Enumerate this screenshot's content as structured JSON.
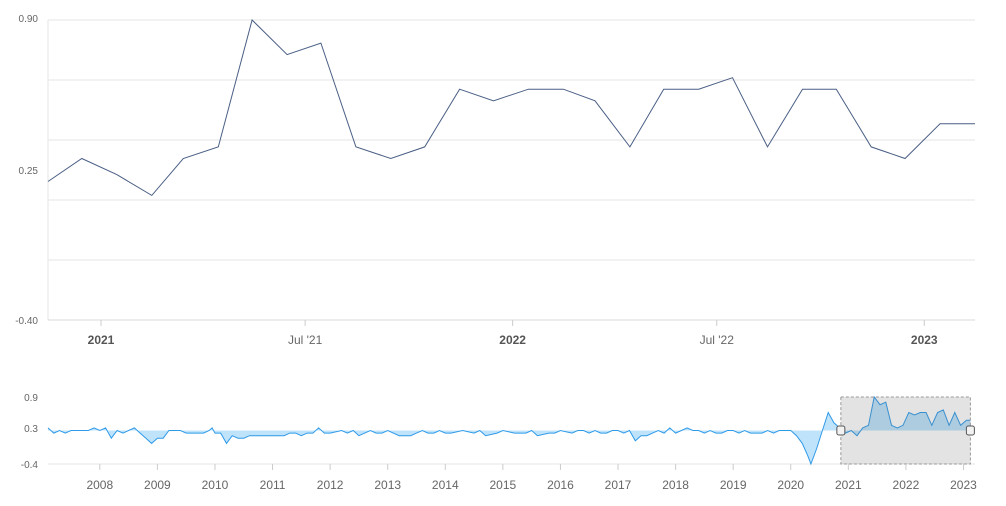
{
  "chart_data": [
    {
      "type": "line",
      "title": "",
      "xlabel": "",
      "ylabel": "",
      "ylim": [
        -0.4,
        0.9
      ],
      "y_ticks": [
        {
          "value": 0.9,
          "label": "0.90"
        },
        {
          "value": 0.25,
          "label": "0.25"
        },
        {
          "value": -0.4,
          "label": "-0.40"
        }
      ],
      "x_ticks": [
        {
          "label": "2021",
          "date": "2021-01-01",
          "bold": true
        },
        {
          "label": "Jul '21",
          "date": "2021-07-01",
          "bold": false
        },
        {
          "label": "2022",
          "date": "2022-01-01",
          "bold": true
        },
        {
          "label": "Jul '22",
          "date": "2022-07-01",
          "bold": false
        },
        {
          "label": "2023",
          "date": "2023-01-01",
          "bold": true
        }
      ],
      "x_range": [
        "2020-11-15",
        "2023-02-15"
      ],
      "grid": true,
      "line_color": "#4a5f85",
      "series": [
        {
          "points": [
            {
              "x": "2020-11-15",
              "y": 0.2
            },
            {
              "x": "2020-12-15",
              "y": 0.3
            },
            {
              "x": "2021-01-15",
              "y": 0.23
            },
            {
              "x": "2021-02-15",
              "y": 0.14
            },
            {
              "x": "2021-03-15",
              "y": 0.3
            },
            {
              "x": "2021-04-15",
              "y": 0.35
            },
            {
              "x": "2021-05-15",
              "y": 0.9
            },
            {
              "x": "2021-06-15",
              "y": 0.75
            },
            {
              "x": "2021-07-15",
              "y": 0.8
            },
            {
              "x": "2021-08-15",
              "y": 0.35
            },
            {
              "x": "2021-09-15",
              "y": 0.3
            },
            {
              "x": "2021-10-15",
              "y": 0.35
            },
            {
              "x": "2021-11-15",
              "y": 0.6
            },
            {
              "x": "2021-12-15",
              "y": 0.55
            },
            {
              "x": "2022-01-15",
              "y": 0.6
            },
            {
              "x": "2022-02-15",
              "y": 0.6
            },
            {
              "x": "2022-03-15",
              "y": 0.55
            },
            {
              "x": "2022-04-15",
              "y": 0.35
            },
            {
              "x": "2022-05-15",
              "y": 0.6
            },
            {
              "x": "2022-06-15",
              "y": 0.6
            },
            {
              "x": "2022-07-15",
              "y": 0.65
            },
            {
              "x": "2022-08-15",
              "y": 0.35
            },
            {
              "x": "2022-09-15",
              "y": 0.6
            },
            {
              "x": "2022-10-15",
              "y": 0.6
            },
            {
              "x": "2022-11-15",
              "y": 0.35
            },
            {
              "x": "2022-12-15",
              "y": 0.3
            },
            {
              "x": "2023-01-15",
              "y": 0.45
            },
            {
              "x": "2023-02-15",
              "y": 0.45
            }
          ]
        }
      ]
    },
    {
      "type": "area",
      "title": "",
      "xlabel": "",
      "ylabel": "",
      "ylim": [
        -0.4,
        0.9
      ],
      "y_ticks": [
        {
          "value": 0.9,
          "label": "0.9"
        },
        {
          "value": 0.3,
          "label": "0.3"
        },
        {
          "value": -0.4,
          "label": "-0.4"
        }
      ],
      "x_ticks": [
        "2008",
        "2009",
        "2010",
        "2011",
        "2012",
        "2013",
        "2014",
        "2015",
        "2016",
        "2017",
        "2018",
        "2019",
        "2020",
        "2021",
        "2022",
        "2023"
      ],
      "x_range": [
        2007.1,
        2023.2
      ],
      "fill_color": "#bfe3fb",
      "line_color": "#2f9ae8",
      "selected_range": [
        2020.87,
        2023.12
      ],
      "series": [
        {
          "points": [
            [
              2007.1,
              0.3
            ],
            [
              2007.2,
              0.2
            ],
            [
              2007.3,
              0.25
            ],
            [
              2007.4,
              0.2
            ],
            [
              2007.5,
              0.25
            ],
            [
              2007.6,
              0.25
            ],
            [
              2007.7,
              0.25
            ],
            [
              2007.8,
              0.25
            ],
            [
              2007.9,
              0.3
            ],
            [
              2008.0,
              0.25
            ],
            [
              2008.1,
              0.3
            ],
            [
              2008.2,
              0.1
            ],
            [
              2008.3,
              0.25
            ],
            [
              2008.4,
              0.2
            ],
            [
              2008.5,
              0.25
            ],
            [
              2008.6,
              0.3
            ],
            [
              2008.7,
              0.2
            ],
            [
              2008.8,
              0.1
            ],
            [
              2008.9,
              0.0
            ],
            [
              2009.0,
              0.1
            ],
            [
              2009.1,
              0.1
            ],
            [
              2009.2,
              0.25
            ],
            [
              2009.3,
              0.25
            ],
            [
              2009.4,
              0.25
            ],
            [
              2009.5,
              0.2
            ],
            [
              2009.6,
              0.2
            ],
            [
              2009.7,
              0.2
            ],
            [
              2009.8,
              0.2
            ],
            [
              2009.9,
              0.25
            ],
            [
              2009.95,
              0.3
            ],
            [
              2010.0,
              0.2
            ],
            [
              2010.1,
              0.2
            ],
            [
              2010.2,
              0.0
            ],
            [
              2010.3,
              0.15
            ],
            [
              2010.4,
              0.1
            ],
            [
              2010.5,
              0.1
            ],
            [
              2010.6,
              0.15
            ],
            [
              2010.8,
              0.15
            ],
            [
              2011.0,
              0.15
            ],
            [
              2011.2,
              0.15
            ],
            [
              2011.3,
              0.2
            ],
            [
              2011.4,
              0.2
            ],
            [
              2011.5,
              0.15
            ],
            [
              2011.6,
              0.2
            ],
            [
              2011.7,
              0.2
            ],
            [
              2011.8,
              0.3
            ],
            [
              2011.9,
              0.2
            ],
            [
              2012.0,
              0.2
            ],
            [
              2012.2,
              0.25
            ],
            [
              2012.3,
              0.2
            ],
            [
              2012.4,
              0.25
            ],
            [
              2012.5,
              0.15
            ],
            [
              2012.6,
              0.2
            ],
            [
              2012.7,
              0.25
            ],
            [
              2012.8,
              0.2
            ],
            [
              2012.9,
              0.2
            ],
            [
              2013.0,
              0.25
            ],
            [
              2013.2,
              0.15
            ],
            [
              2013.4,
              0.15
            ],
            [
              2013.5,
              0.2
            ],
            [
              2013.6,
              0.25
            ],
            [
              2013.7,
              0.2
            ],
            [
              2013.8,
              0.2
            ],
            [
              2013.9,
              0.25
            ],
            [
              2014.0,
              0.2
            ],
            [
              2014.1,
              0.2
            ],
            [
              2014.3,
              0.25
            ],
            [
              2014.5,
              0.2
            ],
            [
              2014.6,
              0.25
            ],
            [
              2014.7,
              0.15
            ],
            [
              2014.9,
              0.2
            ],
            [
              2015.0,
              0.25
            ],
            [
              2015.2,
              0.2
            ],
            [
              2015.4,
              0.2
            ],
            [
              2015.5,
              0.25
            ],
            [
              2015.6,
              0.15
            ],
            [
              2015.8,
              0.2
            ],
            [
              2015.9,
              0.2
            ],
            [
              2016.0,
              0.25
            ],
            [
              2016.2,
              0.2
            ],
            [
              2016.3,
              0.25
            ],
            [
              2016.4,
              0.25
            ],
            [
              2016.5,
              0.2
            ],
            [
              2016.6,
              0.25
            ],
            [
              2016.7,
              0.2
            ],
            [
              2016.8,
              0.2
            ],
            [
              2016.9,
              0.25
            ],
            [
              2017.0,
              0.25
            ],
            [
              2017.1,
              0.2
            ],
            [
              2017.2,
              0.25
            ],
            [
              2017.3,
              0.05
            ],
            [
              2017.4,
              0.15
            ],
            [
              2017.5,
              0.15
            ],
            [
              2017.6,
              0.2
            ],
            [
              2017.7,
              0.25
            ],
            [
              2017.8,
              0.2
            ],
            [
              2017.9,
              0.3
            ],
            [
              2018.0,
              0.2
            ],
            [
              2018.1,
              0.25
            ],
            [
              2018.2,
              0.3
            ],
            [
              2018.3,
              0.25
            ],
            [
              2018.4,
              0.25
            ],
            [
              2018.5,
              0.2
            ],
            [
              2018.6,
              0.25
            ],
            [
              2018.7,
              0.2
            ],
            [
              2018.8,
              0.2
            ],
            [
              2018.9,
              0.25
            ],
            [
              2019.0,
              0.25
            ],
            [
              2019.1,
              0.2
            ],
            [
              2019.2,
              0.25
            ],
            [
              2019.3,
              0.2
            ],
            [
              2019.4,
              0.2
            ],
            [
              2019.5,
              0.2
            ],
            [
              2019.6,
              0.25
            ],
            [
              2019.7,
              0.2
            ],
            [
              2019.8,
              0.25
            ],
            [
              2019.9,
              0.25
            ],
            [
              2020.0,
              0.25
            ],
            [
              2020.1,
              0.15
            ],
            [
              2020.2,
              0.0
            ],
            [
              2020.3,
              -0.25
            ],
            [
              2020.35,
              -0.4
            ],
            [
              2020.45,
              -0.1
            ],
            [
              2020.55,
              0.25
            ],
            [
              2020.65,
              0.6
            ],
            [
              2020.75,
              0.4
            ],
            [
              2020.85,
              0.3
            ],
            [
              2020.95,
              0.2
            ],
            [
              2021.05,
              0.25
            ],
            [
              2021.15,
              0.15
            ],
            [
              2021.25,
              0.3
            ],
            [
              2021.35,
              0.35
            ],
            [
              2021.45,
              0.9
            ],
            [
              2021.55,
              0.75
            ],
            [
              2021.65,
              0.8
            ],
            [
              2021.75,
              0.35
            ],
            [
              2021.85,
              0.3
            ],
            [
              2021.95,
              0.35
            ],
            [
              2022.05,
              0.6
            ],
            [
              2022.15,
              0.55
            ],
            [
              2022.25,
              0.6
            ],
            [
              2022.35,
              0.6
            ],
            [
              2022.45,
              0.35
            ],
            [
              2022.55,
              0.6
            ],
            [
              2022.65,
              0.65
            ],
            [
              2022.75,
              0.35
            ],
            [
              2022.85,
              0.6
            ],
            [
              2022.95,
              0.35
            ],
            [
              2023.05,
              0.45
            ],
            [
              2023.12,
              0.45
            ]
          ]
        }
      ]
    }
  ]
}
